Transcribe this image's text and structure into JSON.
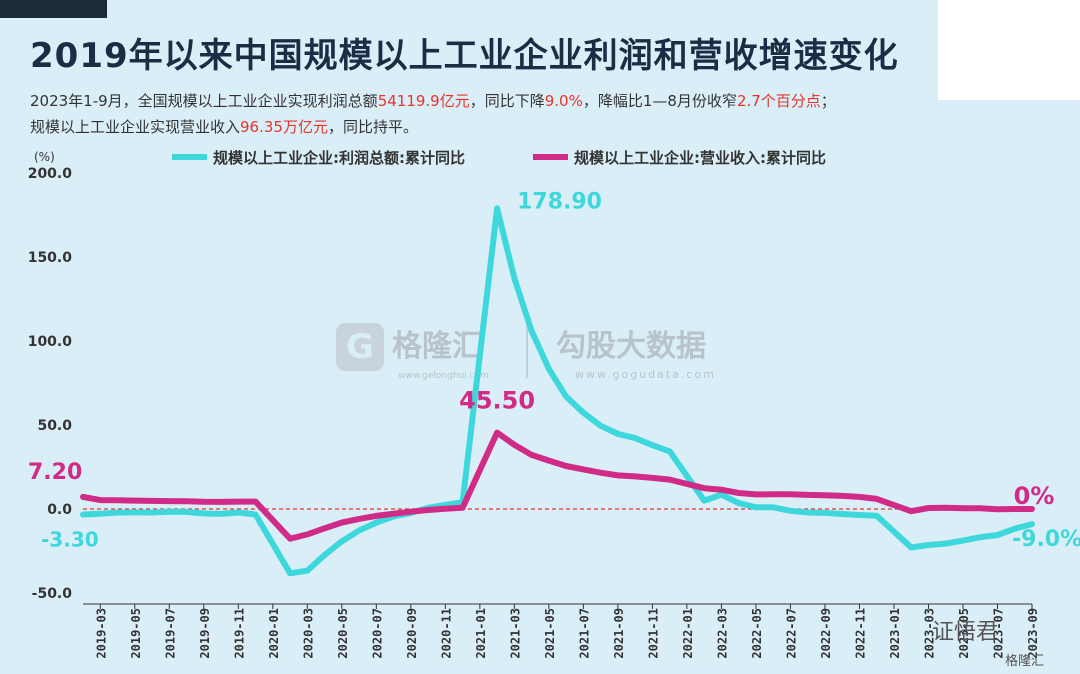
{
  "header": {
    "title": "2019年以来中国规模以上工业企业利润和营收增速变化",
    "subtitle_line1_a": "2023年1-9月，全国规模以上工业企业实现利润总额",
    "subtitle_line1_b": "54119.9亿元",
    "subtitle_line1_c": "，同比下降",
    "subtitle_line1_d": "9.0%",
    "subtitle_line1_e": "，降幅比1—8月份收窄",
    "subtitle_line1_f": "2.7个百分点",
    "subtitle_line1_g": "；",
    "subtitle_line2_a": "规模以上工业企业实现营业收入",
    "subtitle_line2_b": "96.35万亿元",
    "subtitle_line2_c": "，同比持平。"
  },
  "watermark": {
    "brand1": "格隆汇",
    "brand1_url": "www.gelonghui.com",
    "brand2": "勾股大数据",
    "brand2_url": "www.gogudata.com",
    "footer": "证悟君",
    "footer2": "格隆汇"
  },
  "colors": {
    "profit": "#3ed8dc",
    "revenue": "#cf2b87",
    "zero_line": "#e8332a",
    "accent_red": "#e8332a"
  },
  "chart_data": {
    "type": "line",
    "ylabel": "(%)",
    "ylim": [
      -50,
      200
    ],
    "yticks": [
      "200.0",
      "150.0",
      "100.0",
      "50.0",
      "0.0",
      "-50.0"
    ],
    "ytick_values": [
      200,
      150,
      100,
      50,
      0,
      -50
    ],
    "xtick_labels": [
      "2019-03",
      "2019-05",
      "2019-07",
      "2019-09",
      "2019-11",
      "2020-01",
      "2020-03",
      "2020-05",
      "2020-07",
      "2020-09",
      "2020-11",
      "2021-01",
      "2021-03",
      "2021-05",
      "2021-07",
      "2021-09",
      "2021-11",
      "2022-01",
      "2022-03",
      "2022-05",
      "2022-07",
      "2022-09",
      "2022-11",
      "2023-01",
      "2023-03",
      "2023-05",
      "2023-07",
      "2023-09"
    ],
    "x": [
      "2019-02",
      "2019-03",
      "2019-04",
      "2019-05",
      "2019-06",
      "2019-07",
      "2019-08",
      "2019-09",
      "2019-10",
      "2019-11",
      "2019-12",
      "2020-02",
      "2020-03",
      "2020-04",
      "2020-05",
      "2020-06",
      "2020-07",
      "2020-08",
      "2020-09",
      "2020-10",
      "2020-11",
      "2020-12",
      "2021-02",
      "2021-03",
      "2021-04",
      "2021-05",
      "2021-06",
      "2021-07",
      "2021-08",
      "2021-09",
      "2021-10",
      "2021-11",
      "2021-12",
      "2022-02",
      "2022-03",
      "2022-04",
      "2022-05",
      "2022-06",
      "2022-07",
      "2022-08",
      "2022-09",
      "2022-10",
      "2022-11",
      "2022-12",
      "2023-02",
      "2023-03",
      "2023-04",
      "2023-05",
      "2023-06",
      "2023-07",
      "2023-08",
      "2023-09"
    ],
    "series": [
      {
        "name": "规模以上工业企业:利润总额:累计同比",
        "color": "#3ed8dc",
        "values": [
          -3.3,
          -2.8,
          -2.1,
          -2.0,
          -2.1,
          -1.6,
          -1.7,
          -2.7,
          -2.9,
          -2.1,
          -3.3,
          -38.3,
          -36.7,
          -27.4,
          -19.3,
          -12.8,
          -8.1,
          -4.4,
          -2.4,
          0.7,
          2.4,
          4.1,
          178.9,
          137.3,
          106.0,
          83.4,
          66.9,
          57.3,
          49.5,
          44.7,
          42.2,
          38.0,
          34.3,
          5.0,
          8.5,
          3.5,
          1.0,
          1.0,
          -1.1,
          -2.1,
          -2.3,
          -3.0,
          -3.6,
          -4.0,
          -22.9,
          -21.4,
          -20.6,
          -18.8,
          -16.8,
          -15.5,
          -11.7,
          -9.0
        ]
      },
      {
        "name": "规模以上工业企业:营业收入:累计同比",
        "color": "#cf2b87",
        "values": [
          7.2,
          5.3,
          5.2,
          5.0,
          4.8,
          4.7,
          4.6,
          4.3,
          4.2,
          4.4,
          4.4,
          -17.7,
          -15.1,
          -11.5,
          -8.1,
          -5.9,
          -4.1,
          -2.8,
          -1.6,
          -0.6,
          0.1,
          0.8,
          45.5,
          38.2,
          32.2,
          28.8,
          25.6,
          23.6,
          21.6,
          20.0,
          19.4,
          18.5,
          17.5,
          12.4,
          11.5,
          9.5,
          8.7,
          8.8,
          8.8,
          8.4,
          8.2,
          7.8,
          7.2,
          6.0,
          -1.3,
          0.6,
          0.7,
          0.5,
          0.4,
          -0.2,
          0.0,
          0.0
        ]
      }
    ],
    "annotations": [
      {
        "text": "178.90",
        "series": 0,
        "index": 22
      },
      {
        "text": "45.50",
        "series": 1,
        "index": 22
      },
      {
        "text": "7.20",
        "series": 1,
        "index": 0
      },
      {
        "text": "-3.30",
        "series": 0,
        "index": 0
      },
      {
        "text": "0%",
        "series": 1,
        "index": 51
      },
      {
        "text": "-9.0%",
        "series": 0,
        "index": 51
      }
    ],
    "zero_line": true,
    "legend_position": "top"
  }
}
